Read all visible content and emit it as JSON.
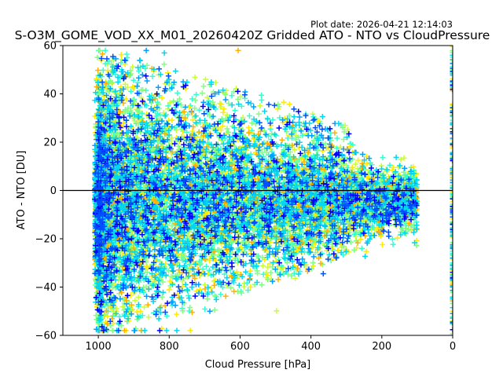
{
  "chart_data": {
    "type": "scatter",
    "title": "S-O3M_GOME_VOD_XX_M01_20260420Z Gridded ATO - NTO vs CloudPressure",
    "plot_date": "Plot date: 2026-04-21 12:14:03",
    "xlabel": "Cloud Pressure [hPa]",
    "ylabel": "ATO - NTO [DU]",
    "xlim": [
      1100,
      0
    ],
    "ylim": [
      -60,
      60
    ],
    "xticks": [
      1000,
      800,
      600,
      400,
      200,
      0
    ],
    "xtick_labels": [
      "1000",
      "800",
      "600",
      "400",
      "200",
      "0"
    ],
    "yticks": [
      -60,
      -40,
      -20,
      0,
      20,
      40,
      60
    ],
    "ytick_labels": [
      "−60",
      "−40",
      "−20",
      "0",
      "20",
      "40",
      "60"
    ],
    "reference_line_y": 0,
    "marker": "+",
    "grid": false,
    "legend": "none",
    "colormap_colors": [
      "#0000ff",
      "#0050ff",
      "#00a0ff",
      "#00d8f0",
      "#30ffd0",
      "#80ff80",
      "#c8ff30",
      "#ffea00",
      "#ffb000"
    ],
    "point_cloud": {
      "estimated": true,
      "cloud_pressure_range": [
        80,
        1010
      ],
      "diff_range": [
        -58,
        58
      ],
      "dense_core_pressure": [
        1000,
        500
      ],
      "dense_core_diff": [
        -30,
        25
      ],
      "edge_column_pressure": 0
    }
  }
}
